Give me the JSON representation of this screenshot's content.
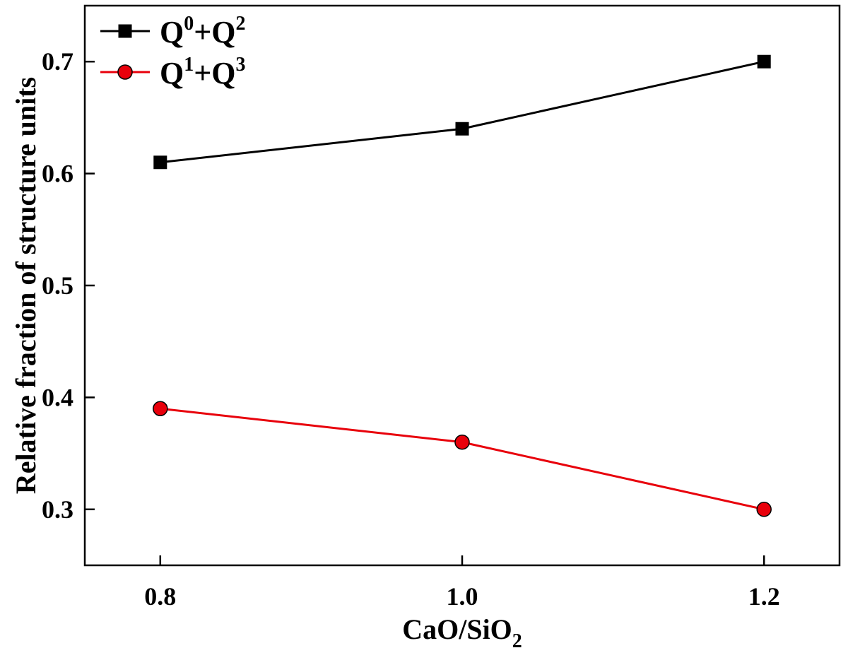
{
  "chart_data": {
    "type": "line",
    "xlabel": {
      "main": "CaO/SiO",
      "subscript": "2"
    },
    "ylabel": "Relative fraction of structure units",
    "xlim": [
      0.75,
      1.25
    ],
    "ylim": [
      0.25,
      0.75
    ],
    "x_ticks": [
      0.8,
      1.0,
      1.2
    ],
    "x_tick_labels": [
      "0.8",
      "1.0",
      "1.2"
    ],
    "y_ticks": [
      0.3,
      0.4,
      0.5,
      0.6,
      0.7
    ],
    "y_tick_labels": [
      "0.3",
      "0.4",
      "0.5",
      "0.6",
      "0.7"
    ],
    "grid": false,
    "legend_position": "top-left",
    "x": [
      0.8,
      1.0,
      1.2
    ],
    "series": [
      {
        "label_parts": [
          "Q",
          "0",
          "+Q",
          "2"
        ],
        "values": [
          0.61,
          0.64,
          0.7
        ],
        "color": "#000000",
        "marker": "square"
      },
      {
        "label_parts": [
          "Q",
          "1",
          "+Q",
          "3"
        ],
        "values": [
          0.39,
          0.36,
          0.3
        ],
        "color": "#e8000b",
        "marker": "circle"
      }
    ]
  }
}
